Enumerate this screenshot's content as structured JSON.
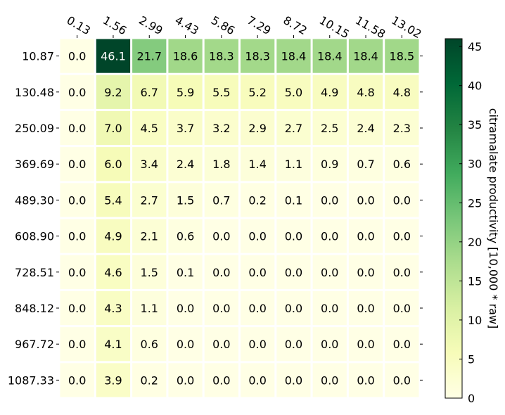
{
  "chart_data": {
    "type": "heatmap",
    "title": "",
    "xlabel": "",
    "ylabel": "",
    "x_categories": [
      "0.13",
      "1.56",
      "2.99",
      "4.43",
      "5.86",
      "7.29",
      "8.72",
      "10.15",
      "11.58",
      "13.02"
    ],
    "y_categories": [
      "10.87",
      "130.48",
      "250.09",
      "369.69",
      "489.30",
      "608.90",
      "728.51",
      "848.12",
      "967.72",
      "1087.33"
    ],
    "values": [
      [
        0.0,
        46.1,
        21.7,
        18.6,
        18.3,
        18.3,
        18.4,
        18.4,
        18.4,
        18.5
      ],
      [
        0.0,
        9.2,
        6.7,
        5.9,
        5.5,
        5.2,
        5.0,
        4.9,
        4.8,
        4.8
      ],
      [
        0.0,
        7.0,
        4.5,
        3.7,
        3.2,
        2.9,
        2.7,
        2.5,
        2.4,
        2.3
      ],
      [
        0.0,
        6.0,
        3.4,
        2.4,
        1.8,
        1.4,
        1.1,
        0.9,
        0.7,
        0.6
      ],
      [
        0.0,
        5.4,
        2.7,
        1.5,
        0.7,
        0.2,
        0.1,
        0.0,
        0.0,
        0.0
      ],
      [
        0.0,
        4.9,
        2.1,
        0.6,
        0.0,
        0.0,
        0.0,
        0.0,
        0.0,
        0.0
      ],
      [
        0.0,
        4.6,
        1.5,
        0.1,
        0.0,
        0.0,
        0.0,
        0.0,
        0.0,
        0.0
      ],
      [
        0.0,
        4.3,
        1.1,
        0.0,
        0.0,
        0.0,
        0.0,
        0.0,
        0.0,
        0.0
      ],
      [
        0.0,
        4.1,
        0.6,
        0.0,
        0.0,
        0.0,
        0.0,
        0.0,
        0.0,
        0.0
      ],
      [
        0.0,
        3.9,
        0.2,
        0.0,
        0.0,
        0.0,
        0.0,
        0.0,
        0.0,
        0.0
      ]
    ],
    "value_labels": [
      [
        "0.0",
        "46.1",
        "21.7",
        "18.6",
        "18.3",
        "18.3",
        "18.4",
        "18.4",
        "18.4",
        "18.5"
      ],
      [
        "0.0",
        "9.2",
        "6.7",
        "5.9",
        "5.5",
        "5.2",
        "5.0",
        "4.9",
        "4.8",
        "4.8"
      ],
      [
        "0.0",
        "7.0",
        "4.5",
        "3.7",
        "3.2",
        "2.9",
        "2.7",
        "2.5",
        "2.4",
        "2.3"
      ],
      [
        "0.0",
        "6.0",
        "3.4",
        "2.4",
        "1.8",
        "1.4",
        "1.1",
        "0.9",
        "0.7",
        "0.6"
      ],
      [
        "0.0",
        "5.4",
        "2.7",
        "1.5",
        "0.7",
        "0.2",
        "0.1",
        "0.0",
        "0.0",
        "0.0"
      ],
      [
        "0.0",
        "4.9",
        "2.1",
        "0.6",
        "0.0",
        "0.0",
        "0.0",
        "0.0",
        "0.0",
        "0.0"
      ],
      [
        "0.0",
        "4.6",
        "1.5",
        "0.1",
        "0.0",
        "0.0",
        "0.0",
        "0.0",
        "0.0",
        "0.0"
      ],
      [
        "0.0",
        "4.3",
        "1.1",
        "0.0",
        "0.0",
        "0.0",
        "0.0",
        "0.0",
        "0.0",
        "0.0"
      ],
      [
        "0.0",
        "4.1",
        "0.6",
        "0.0",
        "0.0",
        "0.0",
        "0.0",
        "0.0",
        "0.0",
        "0.0"
      ],
      [
        "0.0",
        "3.9",
        "0.2",
        "0.0",
        "0.0",
        "0.0",
        "0.0",
        "0.0",
        "0.0",
        "0.0"
      ]
    ],
    "colorbar": {
      "label": "citramalate productivity [10,000 * raw]",
      "range": [
        0,
        46
      ],
      "ticks": [
        0,
        5,
        10,
        15,
        20,
        25,
        30,
        35,
        40,
        45
      ],
      "tick_labels": [
        "0",
        "5",
        "10",
        "15",
        "20",
        "25",
        "30",
        "35",
        "40",
        "45"
      ],
      "colormap": "YlGn",
      "colors": [
        "#ffffe5",
        "#f7fcb9",
        "#d9f0a3",
        "#addd8e",
        "#78c679",
        "#41ab5d",
        "#238443",
        "#006837",
        "#004529"
      ]
    },
    "grid": false,
    "x_axis_position": "top"
  }
}
